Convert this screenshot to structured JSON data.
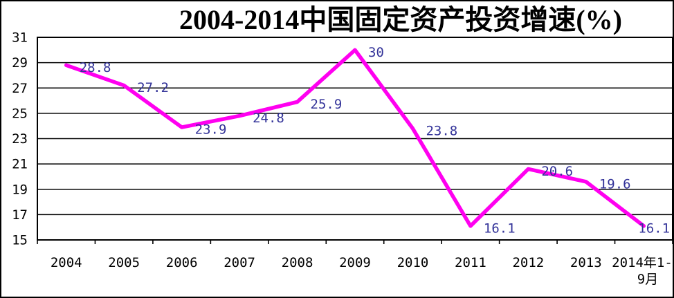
{
  "page": {
    "background_color": "#ffffff",
    "border_color": "#000000"
  },
  "chart_data": {
    "type": "line",
    "title": "2004-2014中国固定资产投资增速(%)",
    "categories": [
      "2004",
      "2005",
      "2006",
      "2007",
      "2008",
      "2009",
      "2010",
      "2011",
      "2012",
      "2013",
      "2014年1-9月"
    ],
    "values": [
      28.8,
      27.2,
      23.9,
      24.8,
      25.9,
      30,
      23.8,
      16.1,
      20.6,
      19.6,
      16.1
    ],
    "data_labels": [
      "28.8",
      "27.2",
      "23.9",
      "24.8",
      "25.9",
      "30",
      "23.8",
      "16.1",
      "20.6",
      "19.6",
      "16.1"
    ],
    "y_ticks": [
      15,
      17,
      19,
      21,
      23,
      25,
      27,
      29,
      31
    ],
    "ylim": [
      15,
      31
    ],
    "xlabel": "",
    "ylabel": "",
    "grid": true,
    "legend_position": "none",
    "line_color": "#FF00F0",
    "data_label_color": "#333399",
    "axis_text_color": "#000000",
    "grid_color": "#000000"
  }
}
